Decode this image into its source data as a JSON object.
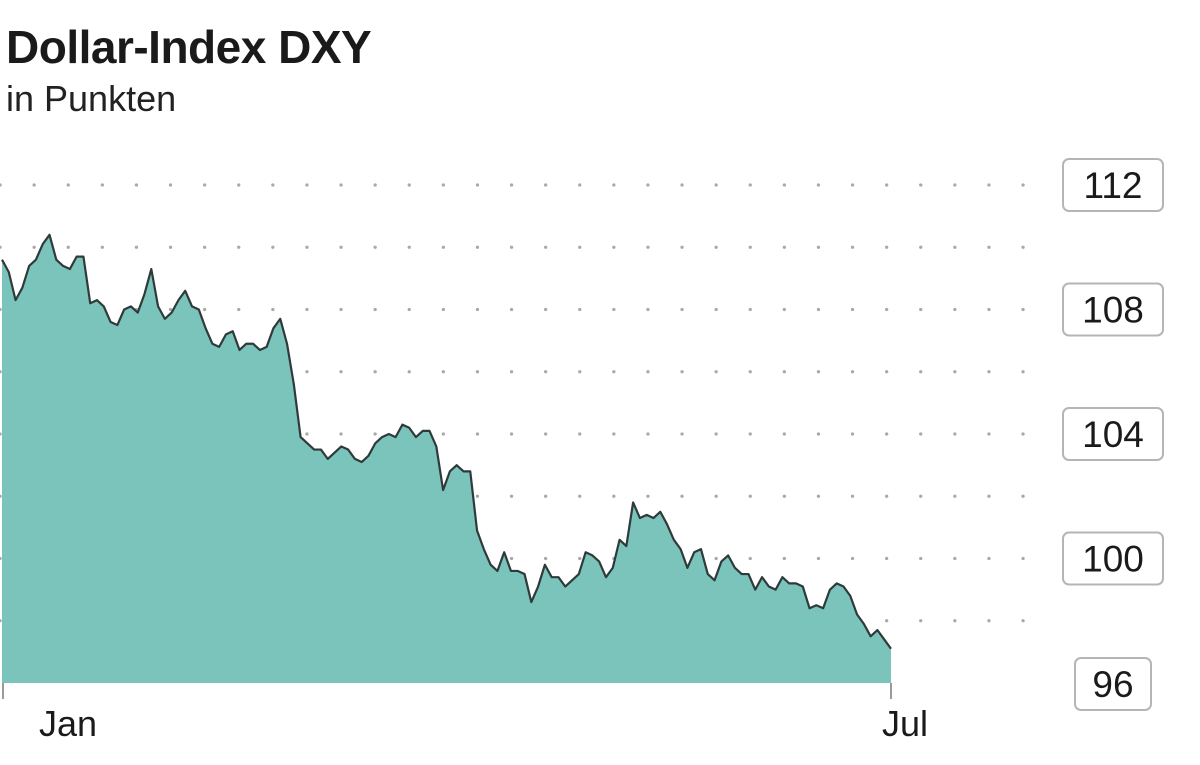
{
  "chart_data": {
    "type": "area",
    "title": "Dollar-Index DXY",
    "subtitle": "in Punkten",
    "xlabel": "",
    "ylabel": "",
    "x_tick_labels": [
      "Jan",
      "Jul"
    ],
    "y_ticks": [
      96,
      100,
      104,
      108,
      112
    ],
    "ylim": [
      95.9,
      113
    ],
    "grid": "dotted-horizontal",
    "colors": {
      "fill": "#7bc4bc",
      "line": "#2f3a3a"
    },
    "series": [
      {
        "values": [
          109.6,
          109.2,
          108.3,
          108.7,
          109.4,
          109.6,
          110.1,
          110.4,
          109.6,
          109.4,
          109.3,
          109.7,
          109.7,
          108.2,
          108.3,
          108.1,
          107.6,
          107.5,
          108.0,
          108.1,
          107.9,
          108.5,
          109.3,
          108.1,
          107.7,
          107.9,
          108.3,
          108.6,
          108.1,
          108.0,
          107.4,
          106.9,
          106.8,
          107.2,
          107.3,
          106.7,
          106.9,
          106.9,
          106.7,
          106.8,
          107.4,
          107.7,
          106.9,
          105.6,
          103.9,
          103.7,
          103.5,
          103.5,
          103.2,
          103.4,
          103.6,
          103.5,
          103.2,
          103.1,
          103.3,
          103.7,
          103.9,
          104.0,
          103.9,
          104.3,
          104.2,
          103.9,
          104.1,
          104.1,
          103.6,
          102.2,
          102.8,
          103.0,
          102.8,
          102.8,
          100.9,
          100.3,
          99.8,
          99.6,
          100.2,
          99.6,
          99.6,
          99.5,
          98.6,
          99.1,
          99.8,
          99.4,
          99.4,
          99.1,
          99.3,
          99.5,
          100.2,
          100.1,
          99.9,
          99.4,
          99.7,
          100.6,
          100.4,
          101.8,
          101.3,
          101.4,
          101.3,
          101.5,
          101.1,
          100.6,
          100.3,
          99.7,
          100.2,
          100.3,
          99.5,
          99.3,
          99.9,
          100.1,
          99.7,
          99.5,
          99.5,
          99.0,
          99.4,
          99.1,
          99.0,
          99.4,
          99.2,
          99.2,
          99.1,
          98.4,
          98.5,
          98.4,
          99.0,
          99.2,
          99.1,
          98.8,
          98.2,
          97.9,
          97.5,
          97.7,
          97.4,
          97.1
        ]
      }
    ]
  }
}
